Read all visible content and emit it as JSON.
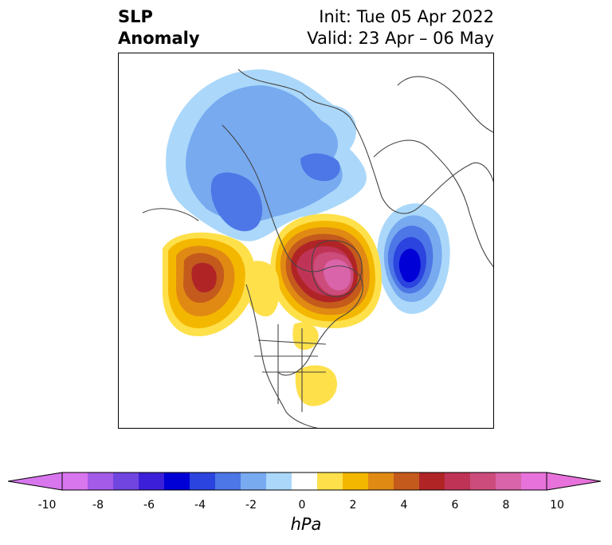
{
  "header": {
    "title_line1": "SLP",
    "title_line2": "Anomaly",
    "init": "Init: Tue 05 Apr 2022",
    "valid": "Valid: 23 Apr – 06 May"
  },
  "colorbar": {
    "unit": "hPa",
    "min": -11,
    "max": 11,
    "ticks": [
      "-10",
      "-8",
      "-6",
      "-4",
      "-2",
      "0",
      "2",
      "4",
      "6",
      "8",
      "10"
    ],
    "tick_values": [
      -10,
      -8,
      -6,
      -4,
      -2,
      0,
      2,
      4,
      6,
      8,
      10
    ],
    "colors": [
      "#d876ee",
      "#a45be8",
      "#7145e0",
      "#3c1fd8",
      "#0000d6",
      "#2b44df",
      "#4d77e6",
      "#78aaf0",
      "#abd8fa",
      "#ffffff",
      "#fee04a",
      "#f4b700",
      "#e08a14",
      "#c45a1c",
      "#b02426",
      "#bf3456",
      "#cc4c7c",
      "#da64aa",
      "#e772db"
    ],
    "extend_low_color": "#d876ee",
    "extend_high_color": "#e772db"
  }
}
